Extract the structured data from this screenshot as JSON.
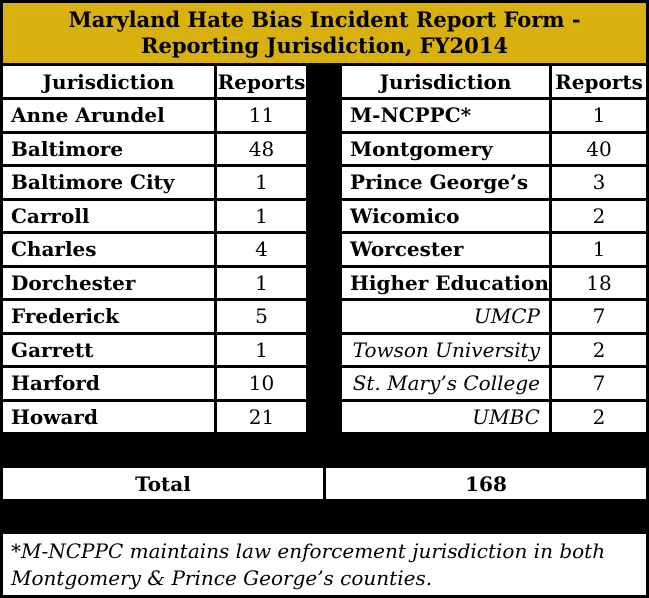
{
  "title_line1": "Maryland Hate Bias Incident Report Form -",
  "title_line2": "Reporting Jurisdiction, FY2014",
  "left_headers": {
    "jurisdiction": "Jurisdiction",
    "reports": "Reports"
  },
  "right_headers": {
    "jurisdiction": "Jurisdiction",
    "reports": "Reports"
  },
  "left_rows": [
    {
      "name": "Anne Arundel",
      "reports": "11"
    },
    {
      "name": "Baltimore",
      "reports": "48"
    },
    {
      "name": "Baltimore City",
      "reports": "1"
    },
    {
      "name": "Carroll",
      "reports": "1"
    },
    {
      "name": "Charles",
      "reports": "4"
    },
    {
      "name": "Dorchester",
      "reports": "1"
    },
    {
      "name": "Frederick",
      "reports": "5"
    },
    {
      "name": "Garrett",
      "reports": "1"
    },
    {
      "name": "Harford",
      "reports": "10"
    },
    {
      "name": "Howard",
      "reports": "21"
    }
  ],
  "right_rows": [
    {
      "name": "M-NCPPC*",
      "reports": "1"
    },
    {
      "name": "Montgomery",
      "reports": "40"
    },
    {
      "name": "Prince George’s",
      "reports": "3"
    },
    {
      "name": "Wicomico",
      "reports": "2"
    },
    {
      "name": "Worcester",
      "reports": "1"
    },
    {
      "name": "Higher Education",
      "reports": "18"
    },
    {
      "name": "UMCP",
      "reports": "7"
    },
    {
      "name": "Towson University",
      "reports": "2"
    },
    {
      "name": "St. Mary’s College",
      "reports": "7"
    },
    {
      "name": "UMBC",
      "reports": "2"
    }
  ],
  "total_label": "Total",
  "total_value": "168",
  "footnote_line1": "*M-NCPPC maintains law enforcement jurisdiction in both",
  "footnote_line2": "Montgomery & Prince George’s counties.",
  "colors": {
    "title_bg": "#d8b10e",
    "border": "#000000",
    "cell_bg": "#ffffff"
  }
}
